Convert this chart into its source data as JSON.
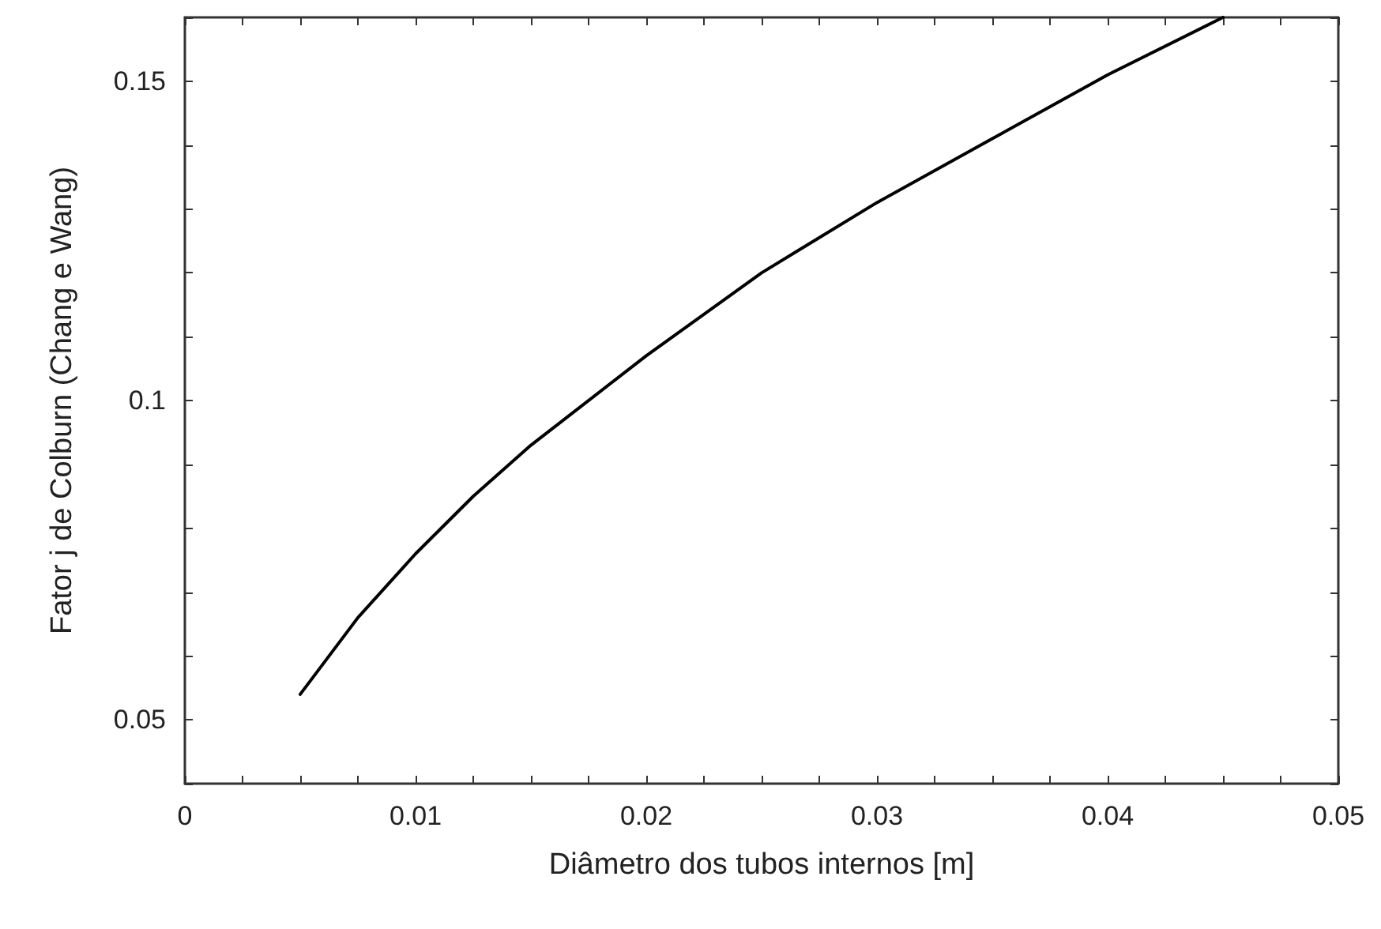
{
  "chart_data": {
    "type": "line",
    "xlabel": "Diâmetro dos tubos internos [m]",
    "ylabel": "Fator j de Colburn (Chang e Wang)",
    "x": [
      0.005,
      0.0075,
      0.01,
      0.0125,
      0.015,
      0.02,
      0.025,
      0.03,
      0.035,
      0.04,
      0.045
    ],
    "series": [
      {
        "color": "#000000",
        "values": [
          0.054,
          0.066,
          0.076,
          0.085,
          0.093,
          0.107,
          0.12,
          0.131,
          0.141,
          0.151,
          0.16
        ]
      }
    ],
    "xlim": [
      0,
      0.05
    ],
    "xticks": [
      0,
      {
        "value": 0.0025,
        "label": null
      },
      {
        "value": 0.005,
        "label": null
      },
      {
        "value": 0.0075,
        "label": null
      },
      0.01,
      {
        "value": 0.0125,
        "label": null
      },
      {
        "value": 0.015,
        "label": null
      },
      {
        "value": 0.0175,
        "label": null
      },
      0.02,
      {
        "value": 0.0225,
        "label": null
      },
      {
        "value": 0.025,
        "label": null
      },
      {
        "value": 0.0275,
        "label": null
      },
      0.03,
      {
        "value": 0.0325,
        "label": null
      },
      {
        "value": 0.035,
        "label": null
      },
      {
        "value": 0.0375,
        "label": null
      },
      0.04,
      {
        "value": 0.0425,
        "label": null
      },
      {
        "value": 0.045,
        "label": null
      },
      {
        "value": 0.0475,
        "label": null
      },
      0.05
    ],
    "ylim": [
      0.04,
      0.16
    ],
    "yticks": [
      {
        "value": 0.04,
        "label": null
      },
      0.05,
      {
        "value": 0.06,
        "label": null
      },
      {
        "value": 0.07,
        "label": null
      },
      {
        "value": 0.08,
        "label": null
      },
      {
        "value": 0.09,
        "label": null
      },
      0.1,
      {
        "value": 0.11,
        "label": null
      },
      {
        "value": 0.12,
        "label": null
      },
      {
        "value": 0.13,
        "label": null
      },
      {
        "value": 0.14,
        "label": null
      },
      0.15,
      {
        "value": 0.16,
        "label": null
      }
    ],
    "marker": "none",
    "line_style": "solid"
  }
}
